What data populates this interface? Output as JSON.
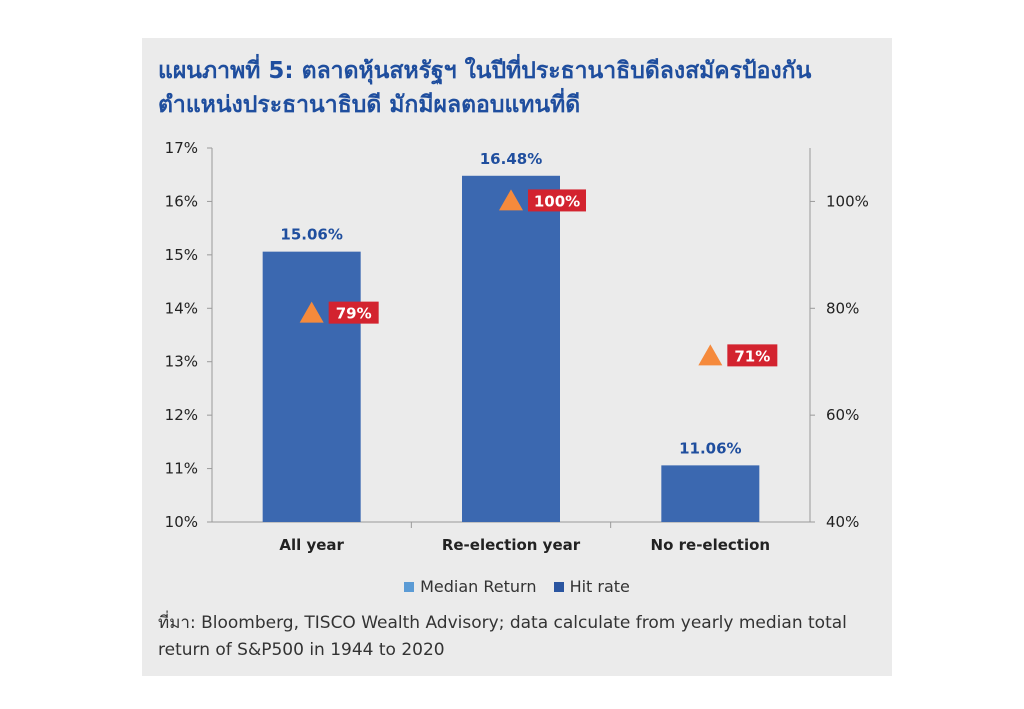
{
  "title_lines": [
    "แผนภาพที่ 5: ตลาดหุ้นสหรัฐฯ ในปีที่ประธานาธิบดีลงสมัครป้องกัน",
    "ตำแหน่งประธานาธิบดี มักมีผลตอบแทนที่ดี"
  ],
  "legend": [
    {
      "label": "Median Return",
      "color": "#5b9bd5"
    },
    {
      "label": "Hit rate",
      "color": "#2a55a0"
    }
  ],
  "source": "ที่มา: Bloomberg, TISCO Wealth Advisory; data calculate from yearly median total return of S&P500 in 1944 to 2020",
  "colors": {
    "bar": "#3b68b0",
    "bar_label": "#1f4e9e",
    "marker": "#f58a3c",
    "hit_label_bg": "#d3232f",
    "title": "#1f4e9e"
  },
  "chart_data": {
    "type": "bar",
    "categories": [
      "All year",
      "Re-election year",
      "No re-election"
    ],
    "series": [
      {
        "name": "Median Return",
        "values": [
          15.06,
          16.48,
          11.06
        ],
        "labels": [
          "15.06%",
          "16.48%",
          "11.06%"
        ],
        "axis": "left"
      },
      {
        "name": "Hit rate",
        "values": [
          79,
          100,
          71
        ],
        "labels": [
          "79%",
          "100%",
          "71%"
        ],
        "axis": "right"
      }
    ],
    "ylim_left": [
      10,
      17
    ],
    "yticks_left": [
      "10%",
      "11%",
      "12%",
      "13%",
      "14%",
      "15%",
      "16%",
      "17%"
    ],
    "ylim_right": [
      40,
      110
    ],
    "yticks_right": [
      "40%",
      "60%",
      "80%",
      "100%"
    ],
    "grid": false,
    "legend_position": "bottom"
  }
}
